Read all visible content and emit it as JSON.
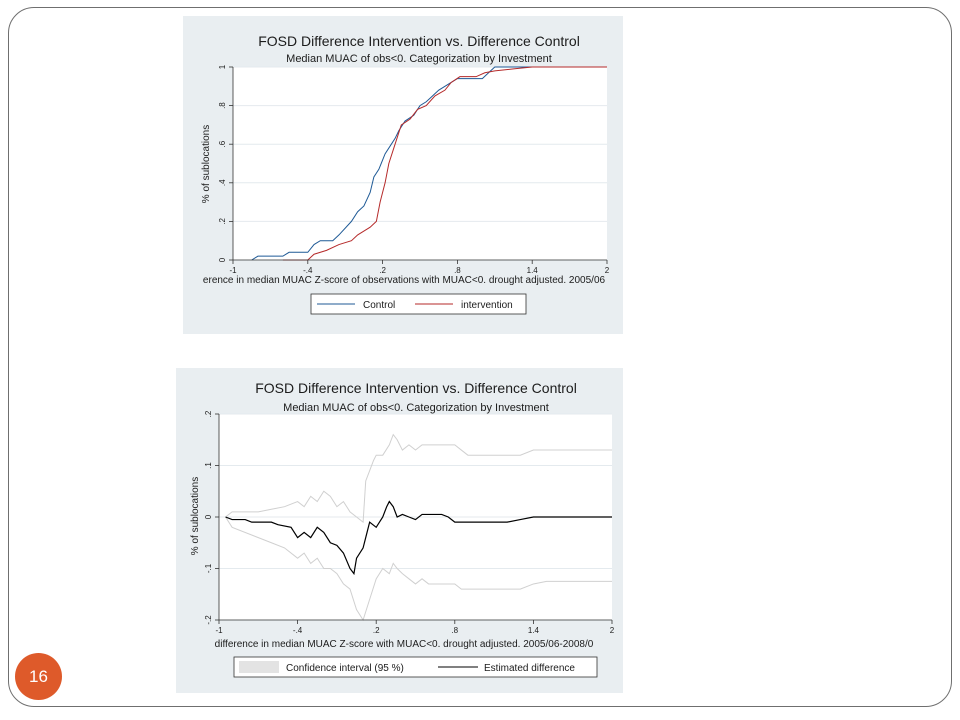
{
  "slide": {
    "page_number": "16"
  },
  "chart_data": [
    {
      "type": "line",
      "title": "FOSD Difference Intervention vs. Difference Control",
      "subtitle": "Median MUAC of obs<0. Categorization by Investment",
      "xlabel": "erence in median MUAC Z-score of observations with MUAC<0. drought adjusted. 2005/06",
      "ylabel": "% of sublocations",
      "xlim": [
        -1,
        2
      ],
      "ylim": [
        0,
        1
      ],
      "x_ticks": [
        "-1",
        "-.4",
        ".2",
        ".8",
        "1.4",
        "2"
      ],
      "y_ticks": [
        "0",
        ".2",
        ".4",
        ".6",
        ".8",
        "1"
      ],
      "grid": true,
      "legend_position": "bottom",
      "series": [
        {
          "name": "Control",
          "color": "#1f5a96",
          "points": [
            [
              -0.85,
              0
            ],
            [
              -0.8,
              0.02
            ],
            [
              -0.6,
              0.02
            ],
            [
              -0.55,
              0.04
            ],
            [
              -0.4,
              0.04
            ],
            [
              -0.35,
              0.08
            ],
            [
              -0.3,
              0.1
            ],
            [
              -0.2,
              0.1
            ],
            [
              -0.15,
              0.13
            ],
            [
              -0.05,
              0.2
            ],
            [
              0.0,
              0.25
            ],
            [
              0.05,
              0.28
            ],
            [
              0.1,
              0.35
            ],
            [
              0.13,
              0.43
            ],
            [
              0.17,
              0.47
            ],
            [
              0.22,
              0.55
            ],
            [
              0.27,
              0.6
            ],
            [
              0.3,
              0.63
            ],
            [
              0.33,
              0.67
            ],
            [
              0.38,
              0.72
            ],
            [
              0.45,
              0.75
            ],
            [
              0.5,
              0.8
            ],
            [
              0.55,
              0.82
            ],
            [
              0.6,
              0.85
            ],
            [
              0.65,
              0.88
            ],
            [
              0.7,
              0.9
            ],
            [
              0.75,
              0.92
            ],
            [
              0.8,
              0.94
            ],
            [
              1.0,
              0.94
            ],
            [
              1.05,
              0.97
            ],
            [
              1.1,
              1.0
            ],
            [
              2.0,
              1.0
            ]
          ]
        },
        {
          "name": "intervention",
          "color": "#b52a2a",
          "points": [
            [
              -0.6,
              0
            ],
            [
              -0.4,
              0
            ],
            [
              -0.35,
              0.03
            ],
            [
              -0.25,
              0.05
            ],
            [
              -0.15,
              0.08
            ],
            [
              -0.05,
              0.1
            ],
            [
              0.0,
              0.13
            ],
            [
              0.05,
              0.15
            ],
            [
              0.1,
              0.17
            ],
            [
              0.15,
              0.2
            ],
            [
              0.18,
              0.3
            ],
            [
              0.22,
              0.4
            ],
            [
              0.25,
              0.5
            ],
            [
              0.3,
              0.6
            ],
            [
              0.35,
              0.7
            ],
            [
              0.42,
              0.73
            ],
            [
              0.48,
              0.78
            ],
            [
              0.55,
              0.8
            ],
            [
              0.62,
              0.85
            ],
            [
              0.7,
              0.88
            ],
            [
              0.75,
              0.92
            ],
            [
              0.82,
              0.95
            ],
            [
              0.95,
              0.95
            ],
            [
              1.02,
              0.97
            ],
            [
              1.1,
              0.98
            ],
            [
              1.25,
              0.99
            ],
            [
              1.4,
              1.0
            ],
            [
              2.0,
              1.0
            ]
          ]
        }
      ]
    },
    {
      "type": "line",
      "title": "FOSD Difference Intervention vs. Difference Control",
      "subtitle": "Median MUAC of obs<0.  Categorization by Investment",
      "xlabel": "difference in median MUAC Z-score with MUAC<0. drought adjusted. 2005/06-2008/0",
      "ylabel": "% of sublocations",
      "xlim": [
        -1,
        2
      ],
      "ylim": [
        -0.2,
        0.2
      ],
      "x_ticks": [
        "-1",
        "-.4",
        ".2",
        ".8",
        "1.4",
        "2"
      ],
      "y_ticks": [
        "-.2",
        "-.1",
        "0",
        ".1",
        ".2"
      ],
      "grid": true,
      "legend_position": "bottom",
      "series": [
        {
          "name": "Confidence interval (95 %)",
          "color": "#d0d0d0",
          "upper": [
            [
              -0.95,
              0.0
            ],
            [
              -0.9,
              0.01
            ],
            [
              -0.7,
              0.01
            ],
            [
              -0.6,
              0.015
            ],
            [
              -0.5,
              0.02
            ],
            [
              -0.4,
              0.03
            ],
            [
              -0.35,
              0.02
            ],
            [
              -0.3,
              0.04
            ],
            [
              -0.25,
              0.03
            ],
            [
              -0.2,
              0.05
            ],
            [
              -0.15,
              0.04
            ],
            [
              -0.1,
              0.02
            ],
            [
              -0.05,
              0.03
            ],
            [
              0.0,
              0.01
            ],
            [
              0.05,
              0.0
            ],
            [
              0.1,
              -0.01
            ],
            [
              0.12,
              0.07
            ],
            [
              0.15,
              0.09
            ],
            [
              0.18,
              0.11
            ],
            [
              0.2,
              0.12
            ],
            [
              0.25,
              0.12
            ],
            [
              0.3,
              0.14
            ],
            [
              0.33,
              0.16
            ],
            [
              0.36,
              0.15
            ],
            [
              0.4,
              0.13
            ],
            [
              0.45,
              0.14
            ],
            [
              0.5,
              0.13
            ],
            [
              0.55,
              0.14
            ],
            [
              0.6,
              0.14
            ],
            [
              0.7,
              0.14
            ],
            [
              0.8,
              0.14
            ],
            [
              0.85,
              0.13
            ],
            [
              0.9,
              0.12
            ],
            [
              1.0,
              0.12
            ],
            [
              1.1,
              0.12
            ],
            [
              1.2,
              0.12
            ],
            [
              1.3,
              0.12
            ],
            [
              1.4,
              0.13
            ],
            [
              1.5,
              0.13
            ],
            [
              2.0,
              0.13
            ]
          ],
          "lower": [
            [
              -0.95,
              0.0
            ],
            [
              -0.9,
              -0.02
            ],
            [
              -0.7,
              -0.04
            ],
            [
              -0.6,
              -0.05
            ],
            [
              -0.5,
              -0.06
            ],
            [
              -0.4,
              -0.08
            ],
            [
              -0.35,
              -0.07
            ],
            [
              -0.3,
              -0.09
            ],
            [
              -0.25,
              -0.08
            ],
            [
              -0.2,
              -0.1
            ],
            [
              -0.15,
              -0.1
            ],
            [
              -0.1,
              -0.11
            ],
            [
              -0.05,
              -0.13
            ],
            [
              0.0,
              -0.14
            ],
            [
              0.05,
              -0.18
            ],
            [
              0.1,
              -0.2
            ],
            [
              0.15,
              -0.16
            ],
            [
              0.2,
              -0.12
            ],
            [
              0.25,
              -0.1
            ],
            [
              0.3,
              -0.11
            ],
            [
              0.33,
              -0.09
            ],
            [
              0.36,
              -0.1
            ],
            [
              0.4,
              -0.11
            ],
            [
              0.45,
              -0.12
            ],
            [
              0.5,
              -0.13
            ],
            [
              0.55,
              -0.12
            ],
            [
              0.6,
              -0.13
            ],
            [
              0.7,
              -0.13
            ],
            [
              0.8,
              -0.13
            ],
            [
              0.85,
              -0.14
            ],
            [
              0.9,
              -0.14
            ],
            [
              1.0,
              -0.14
            ],
            [
              1.1,
              -0.14
            ],
            [
              1.2,
              -0.14
            ],
            [
              1.3,
              -0.14
            ],
            [
              1.4,
              -0.13
            ],
            [
              1.5,
              -0.125
            ],
            [
              2.0,
              -0.125
            ]
          ]
        },
        {
          "name": "Estimated difference",
          "color": "#000000",
          "points": [
            [
              -0.95,
              0.0
            ],
            [
              -0.9,
              -0.005
            ],
            [
              -0.8,
              -0.005
            ],
            [
              -0.75,
              -0.01
            ],
            [
              -0.6,
              -0.01
            ],
            [
              -0.55,
              -0.015
            ],
            [
              -0.45,
              -0.02
            ],
            [
              -0.4,
              -0.04
            ],
            [
              -0.35,
              -0.03
            ],
            [
              -0.3,
              -0.04
            ],
            [
              -0.25,
              -0.02
            ],
            [
              -0.2,
              -0.03
            ],
            [
              -0.15,
              -0.05
            ],
            [
              -0.1,
              -0.055
            ],
            [
              -0.05,
              -0.07
            ],
            [
              0.0,
              -0.1
            ],
            [
              0.03,
              -0.11
            ],
            [
              0.05,
              -0.08
            ],
            [
              0.1,
              -0.06
            ],
            [
              0.13,
              -0.03
            ],
            [
              0.15,
              -0.01
            ],
            [
              0.2,
              -0.02
            ],
            [
              0.25,
              0.0
            ],
            [
              0.28,
              0.02
            ],
            [
              0.3,
              0.03
            ],
            [
              0.33,
              0.02
            ],
            [
              0.36,
              0.0
            ],
            [
              0.4,
              0.005
            ],
            [
              0.45,
              0.0
            ],
            [
              0.5,
              -0.005
            ],
            [
              0.55,
              0.005
            ],
            [
              0.6,
              0.005
            ],
            [
              0.7,
              0.005
            ],
            [
              0.75,
              0.0
            ],
            [
              0.8,
              -0.01
            ],
            [
              0.9,
              -0.01
            ],
            [
              1.0,
              -0.01
            ],
            [
              1.2,
              -0.01
            ],
            [
              1.3,
              -0.005
            ],
            [
              1.4,
              0.0
            ],
            [
              2.0,
              0.0
            ]
          ]
        }
      ]
    }
  ]
}
